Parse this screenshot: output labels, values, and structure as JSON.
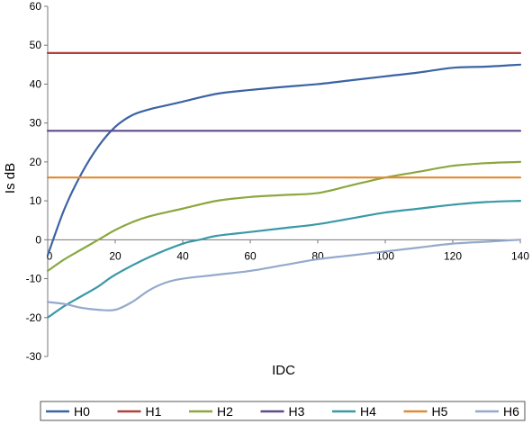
{
  "chart_data": {
    "type": "line",
    "xlabel": "IDC",
    "ylabel": "Is dB",
    "xlim": [
      0,
      140
    ],
    "ylim": [
      -30,
      60
    ],
    "xticks": [
      0,
      20,
      40,
      60,
      80,
      100,
      120,
      140
    ],
    "yticks": [
      -30,
      -20,
      -10,
      0,
      10,
      20,
      30,
      40,
      50,
      60
    ],
    "grid": false,
    "legend_position": "bottom",
    "series": [
      {
        "name": "H0",
        "color": "#3b63a3",
        "points": [
          [
            0,
            -4
          ],
          [
            5,
            8
          ],
          [
            10,
            17
          ],
          [
            15,
            24
          ],
          [
            20,
            29
          ],
          [
            25,
            32
          ],
          [
            30,
            33.5
          ],
          [
            35,
            34.5
          ],
          [
            40,
            35.5
          ],
          [
            50,
            37.5
          ],
          [
            60,
            38.5
          ],
          [
            70,
            39.3
          ],
          [
            80,
            40
          ],
          [
            90,
            41
          ],
          [
            100,
            42
          ],
          [
            110,
            43
          ],
          [
            120,
            44.2
          ],
          [
            130,
            44.5
          ],
          [
            140,
            45
          ]
        ]
      },
      {
        "name": "H1",
        "color": "#b0403c",
        "points": [
          [
            0,
            48
          ],
          [
            140,
            48
          ]
        ]
      },
      {
        "name": "H2",
        "color": "#8aa83e",
        "points": [
          [
            0,
            -8
          ],
          [
            5,
            -5
          ],
          [
            10,
            -2.5
          ],
          [
            15,
            0
          ],
          [
            20,
            2.5
          ],
          [
            25,
            4.5
          ],
          [
            30,
            6
          ],
          [
            40,
            8
          ],
          [
            50,
            10
          ],
          [
            60,
            11
          ],
          [
            70,
            11.5
          ],
          [
            80,
            12
          ],
          [
            90,
            14
          ],
          [
            100,
            16
          ],
          [
            110,
            17.5
          ],
          [
            120,
            19
          ],
          [
            130,
            19.7
          ],
          [
            140,
            20
          ]
        ]
      },
      {
        "name": "H3",
        "color": "#5e4a8a",
        "points": [
          [
            0,
            28
          ],
          [
            140,
            28
          ]
        ]
      },
      {
        "name": "H4",
        "color": "#3a99a6",
        "points": [
          [
            0,
            -20
          ],
          [
            5,
            -17
          ],
          [
            10,
            -14.5
          ],
          [
            15,
            -12
          ],
          [
            20,
            -9
          ],
          [
            30,
            -4.5
          ],
          [
            40,
            -1
          ],
          [
            45,
            0
          ],
          [
            50,
            1
          ],
          [
            60,
            2
          ],
          [
            70,
            3
          ],
          [
            80,
            4
          ],
          [
            90,
            5.5
          ],
          [
            100,
            7
          ],
          [
            110,
            8
          ],
          [
            120,
            9
          ],
          [
            130,
            9.7
          ],
          [
            140,
            10
          ]
        ]
      },
      {
        "name": "H5",
        "color": "#e08a33",
        "points": [
          [
            0,
            16
          ],
          [
            140,
            16
          ]
        ]
      },
      {
        "name": "H6",
        "color": "#94a9cc",
        "points": [
          [
            0,
            -16
          ],
          [
            5,
            -16.5
          ],
          [
            10,
            -17.5
          ],
          [
            15,
            -18
          ],
          [
            20,
            -18
          ],
          [
            25,
            -16
          ],
          [
            30,
            -13
          ],
          [
            35,
            -11
          ],
          [
            40,
            -10
          ],
          [
            50,
            -9
          ],
          [
            60,
            -8
          ],
          [
            70,
            -6.5
          ],
          [
            80,
            -5
          ],
          [
            90,
            -4
          ],
          [
            100,
            -3
          ],
          [
            110,
            -2
          ],
          [
            120,
            -1
          ],
          [
            130,
            -0.5
          ],
          [
            140,
            0
          ]
        ]
      }
    ]
  }
}
